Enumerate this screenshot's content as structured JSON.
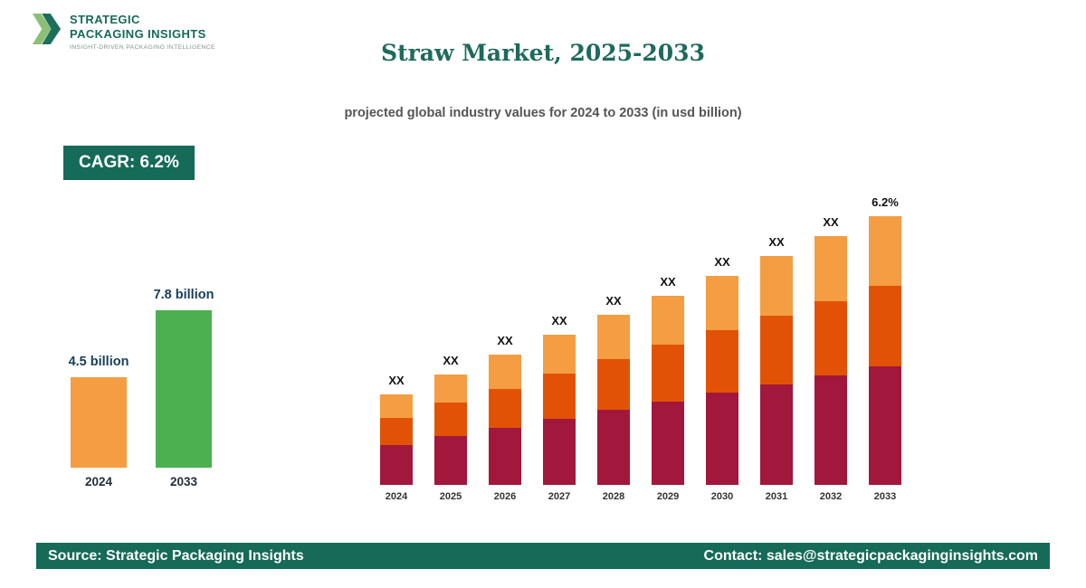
{
  "brand": {
    "line1": "STRATEGIC",
    "line2": "PACKAGING INSIGHTS",
    "tagline": "INSIGHT-DRIVEN PACKAGING INTELLIGENCE"
  },
  "header": {
    "title": "Straw Market, 2025-2033",
    "subtitle": "projected global industry values for 2024 to 2033 (in usd billion)"
  },
  "cagr_badge": "CAGR: 6.2%",
  "footer": {
    "source": "Source: Strategic Packaging Insights",
    "contact": "Contact: sales@strategicpackaginginsights.com"
  },
  "colors": {
    "brand_green": "#156a58",
    "light_orange": "#f49d42",
    "dark_orange": "#e25206",
    "maroon": "#a2173c",
    "green_bar": "#4caf50"
  },
  "chart_data": [
    {
      "type": "bar",
      "name": "summary-growth",
      "categories": [
        "2024",
        "2033"
      ],
      "values": [
        4.5,
        7.8
      ],
      "value_labels": [
        "4.5 billion",
        "7.8 billion"
      ],
      "bar_colors": [
        "#f49d42",
        "#4caf50"
      ],
      "unit": "usd billion",
      "grid": "off",
      "axes": "none"
    },
    {
      "type": "stacked-bar",
      "name": "projection-2024-2033",
      "categories": [
        "2024",
        "2025",
        "2026",
        "2027",
        "2028",
        "2029",
        "2030",
        "2031",
        "2032",
        "2033"
      ],
      "bar_labels": [
        "XX",
        "XX",
        "XX",
        "XX",
        "XX",
        "XX",
        "XX",
        "XX",
        "XX",
        "6.2%"
      ],
      "series": [
        {
          "name": "segment-bottom",
          "color": "#a2173c",
          "values": [
            44,
            54,
            63,
            73,
            83,
            92,
            102,
            111,
            121,
            131
          ]
        },
        {
          "name": "segment-middle",
          "color": "#e25206",
          "values": [
            30,
            37,
            43,
            50,
            56,
            63,
            69,
            76,
            82,
            89
          ]
        },
        {
          "name": "segment-top",
          "color": "#f49d42",
          "values": [
            26,
            31,
            38,
            43,
            49,
            54,
            60,
            66,
            72,
            77
          ]
        }
      ],
      "unit": "relative units (numeric values shown as XX in source)",
      "grid": "off",
      "axes": "none",
      "legend": "none"
    }
  ]
}
